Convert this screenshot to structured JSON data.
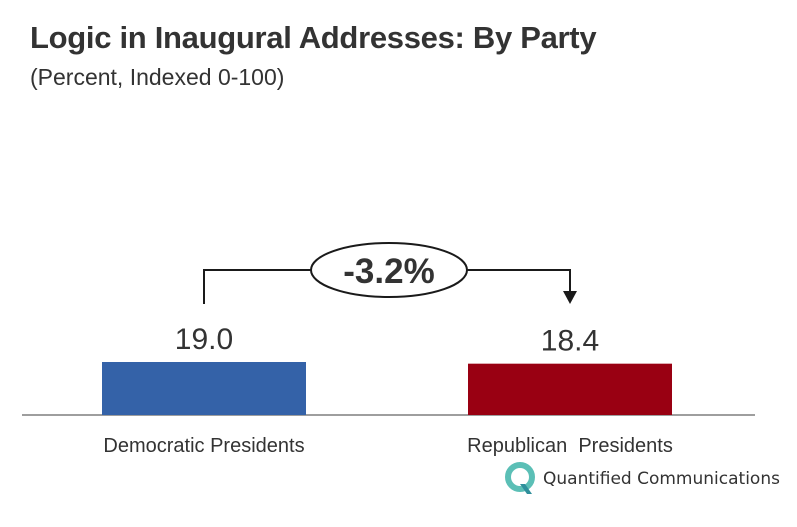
{
  "chart_data": {
    "type": "bar",
    "title": "Logic in Inaugural Addresses: By Party",
    "subtitle": "(Percent, Indexed 0-100)",
    "categories": [
      "Democratic Presidents",
      "Republican  Presidents"
    ],
    "values": [
      19.0,
      18.4
    ],
    "value_labels": [
      "19.0",
      "18.4"
    ],
    "colors": [
      "#3462a8",
      "#990012"
    ],
    "annotation": "-3.2%",
    "xlabel": "",
    "ylabel": "",
    "ylim": [
      0,
      100
    ],
    "grid": false,
    "legend": "none"
  },
  "branding": {
    "logo_text": "Quantified Communications",
    "logo_icon": "q-logo-icon",
    "logo_colors": [
      "#5bbfb6",
      "#2f8f9b"
    ]
  }
}
